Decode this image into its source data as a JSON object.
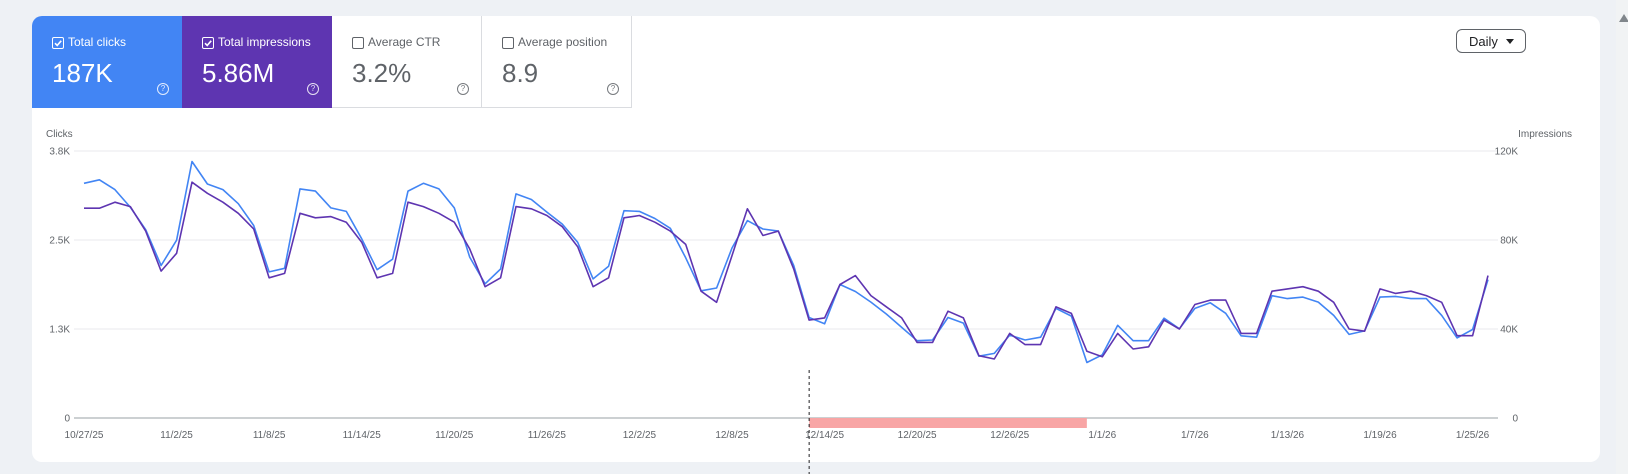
{
  "metrics": [
    {
      "label": "Total clicks",
      "value": "187K",
      "checked": true
    },
    {
      "label": "Total impressions",
      "value": "5.86M",
      "checked": true
    },
    {
      "label": "Average CTR",
      "value": "3.2%",
      "checked": false
    },
    {
      "label": "Average position",
      "value": "8.9",
      "checked": false
    }
  ],
  "help_glyph": "?",
  "granularity": {
    "selected": "Daily"
  },
  "colors": {
    "clicks": "#4285f4",
    "impressions": "#5e35b1",
    "anomaly_band": "#f8a5a5",
    "grid": "#e8eaed",
    "axis": "#9aa0a6"
  },
  "chart_data": {
    "type": "line",
    "left_axis": {
      "label": "Clicks",
      "ticks": [
        "3.8K",
        "2.5K",
        "1.3K",
        "0"
      ],
      "ylim": [
        0,
        3800
      ]
    },
    "right_axis": {
      "label": "Impressions",
      "ticks": [
        "120K",
        "80K",
        "40K",
        "0"
      ],
      "ylim": [
        0,
        120000
      ]
    },
    "x_tick_labels": [
      "10/27/25",
      "11/2/25",
      "11/8/25",
      "11/14/25",
      "11/20/25",
      "11/26/25",
      "12/2/25",
      "12/8/25",
      "12/14/25",
      "12/20/25",
      "12/26/25",
      "1/1/26",
      "1/7/26",
      "1/13/26",
      "1/19/26",
      "1/25/26"
    ],
    "first_date": "10/27/25",
    "last_date": "1/26/26",
    "annotation_date": "12/13/25",
    "shaded_range": [
      "12/13/25",
      "12/31/25"
    ],
    "series": [
      {
        "name": "Clicks",
        "axis": "left",
        "values": [
          3340,
          3390,
          3250,
          3000,
          2680,
          2170,
          2530,
          3650,
          3330,
          3250,
          3050,
          2740,
          2080,
          2130,
          3260,
          3230,
          2990,
          2940,
          2550,
          2110,
          2260,
          3230,
          3340,
          3260,
          2990,
          2290,
          1910,
          2120,
          3190,
          3110,
          2930,
          2760,
          2500,
          1980,
          2160,
          2950,
          2940,
          2840,
          2700,
          2280,
          1810,
          1850,
          2420,
          2810,
          2690,
          2660,
          2170,
          1430,
          1340,
          1900,
          1800,
          1650,
          1480,
          1290,
          1100,
          1110,
          1430,
          1350,
          880,
          920,
          1180,
          1110,
          1150,
          1560,
          1450,
          790,
          900,
          1320,
          1100,
          1100,
          1420,
          1270,
          1560,
          1640,
          1490,
          1170,
          1150,
          1740,
          1700,
          1720,
          1650,
          1460,
          1190,
          1240,
          1720,
          1730,
          1700,
          1700,
          1460,
          1140,
          1260,
          1970
        ]
      },
      {
        "name": "Impressions",
        "axis": "right",
        "values": [
          94300,
          94300,
          97000,
          95000,
          84000,
          66000,
          74000,
          106000,
          101000,
          97000,
          92000,
          85000,
          63000,
          65000,
          92000,
          90000,
          90500,
          88000,
          79000,
          63000,
          65000,
          97000,
          95000,
          92000,
          88000,
          76000,
          59000,
          63000,
          95000,
          94000,
          91000,
          86000,
          77000,
          59000,
          63000,
          90000,
          91000,
          88000,
          84000,
          78000,
          57000,
          52000,
          73000,
          94000,
          82000,
          84000,
          67000,
          44000,
          45000,
          60000,
          64000,
          55000,
          50000,
          45000,
          34000,
          34000,
          48000,
          45000,
          28000,
          26500,
          38000,
          33000,
          33000,
          50000,
          47000,
          30000,
          27500,
          38000,
          31000,
          32000,
          44000,
          40000,
          51000,
          53000,
          53000,
          38000,
          38000,
          57000,
          58000,
          59000,
          57000,
          52000,
          40000,
          39000,
          58000,
          56000,
          57000,
          55000,
          52000,
          37000,
          37000,
          64000
        ]
      }
    ]
  }
}
